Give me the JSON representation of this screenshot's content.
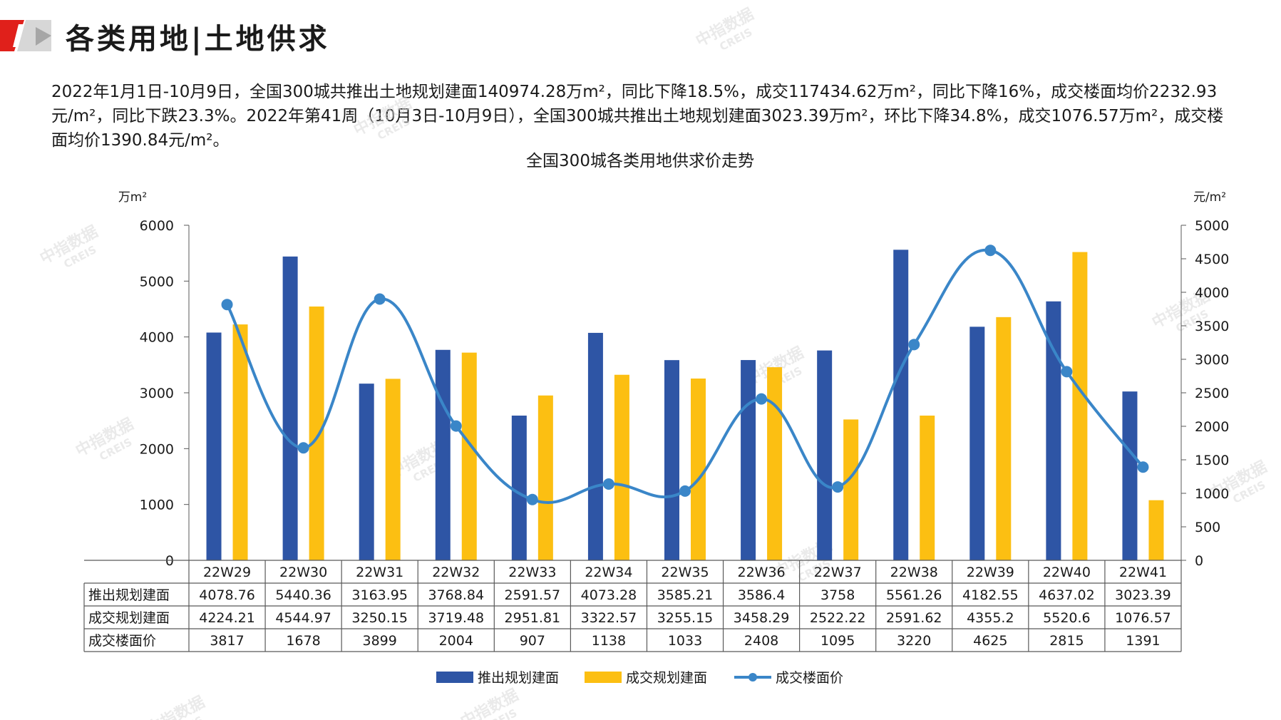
{
  "header": {
    "title": "各类用地|土地供求"
  },
  "summary": {
    "text": "2022年1月1日-10月9日，全国300城共推出土地规划建面140974.28万m²，同比下降18.5%，成交117434.62万m²，同比下降16%，成交楼面均价2232.93元/m²，同比下跌23.3%。2022年第41周（10月3日-10月9日），全国300城共推出土地规划建面3023.39万m²，环比下降34.8%，成交1076.57万m²，成交楼面均价1390.84元/m²。"
  },
  "watermark": {
    "cn": "中指数据",
    "en": "CREIS"
  },
  "colors": {
    "supply": "#2e55a5",
    "deal": "#fcbf12",
    "price": "#3a86c8",
    "brand_red": "#e0201b"
  },
  "chart_data": {
    "type": "bar",
    "title": "全国300城各类用地供求价走势",
    "left_unit": "万m²",
    "right_unit": "元/m²",
    "categories": [
      "22W29",
      "22W30",
      "22W31",
      "22W32",
      "22W33",
      "22W34",
      "22W35",
      "22W36",
      "22W37",
      "22W38",
      "22W39",
      "22W40",
      "22W41"
    ],
    "left_axis": {
      "min": 0,
      "max": 6000,
      "ticks": [
        0,
        1000,
        2000,
        3000,
        4000,
        5000,
        6000
      ]
    },
    "right_axis": {
      "min": 0,
      "max": 5000,
      "ticks": [
        0,
        500,
        1000,
        1500,
        2000,
        2500,
        3000,
        3500,
        4000,
        4500,
        5000
      ]
    },
    "series": [
      {
        "name": "推出规划建面",
        "type": "bar",
        "axis": "left",
        "color": "#2e55a5",
        "values": [
          4078.76,
          5440.36,
          3163.95,
          3768.84,
          2591.57,
          4073.28,
          3585.21,
          3586.4,
          3758,
          5561.26,
          4182.55,
          4637.02,
          3023.39
        ],
        "labels": [
          "4078.76",
          "5440.36",
          "3163.95",
          "3768.84",
          "2591.57",
          "4073.28",
          "3585.21",
          "3586.4",
          "3758",
          "5561.26",
          "4182.55",
          "4637.02",
          "3023.39"
        ]
      },
      {
        "name": "成交规划建面",
        "type": "bar",
        "axis": "left",
        "color": "#fcbf12",
        "values": [
          4224.21,
          4544.97,
          3250.15,
          3719.48,
          2951.81,
          3322.57,
          3255.15,
          3458.29,
          2522.22,
          2591.62,
          4355.2,
          5520.6,
          1076.57
        ],
        "labels": [
          "4224.21",
          "4544.97",
          "3250.15",
          "3719.48",
          "2951.81",
          "3322.57",
          "3255.15",
          "3458.29",
          "2522.22",
          "2591.62",
          "4355.2",
          "5520.6",
          "1076.57"
        ]
      },
      {
        "name": "成交楼面价",
        "type": "line",
        "axis": "right",
        "color": "#3a86c8",
        "values": [
          3817,
          1678,
          3899,
          2004,
          907,
          1138,
          1033,
          2408,
          1095,
          3220,
          4625,
          2815,
          1391
        ],
        "labels": [
          "3817",
          "1678",
          "3899",
          "2004",
          "907",
          "1138",
          "1033",
          "2408",
          "1095",
          "3220",
          "4625",
          "2815",
          "1391"
        ]
      }
    ]
  }
}
